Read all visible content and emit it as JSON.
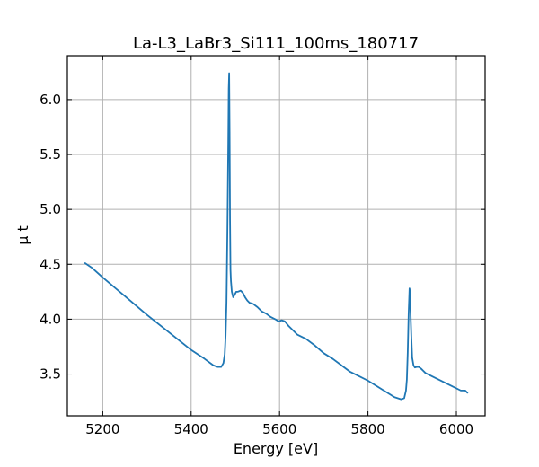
{
  "chart_data": {
    "type": "line",
    "title": "La-L3_LaBr3_Si111_100ms_180717",
    "xlabel": "Energy [eV]",
    "ylabel": "μ t",
    "xlim": [
      5120,
      6065
    ],
    "ylim": [
      3.12,
      6.4
    ],
    "xticks": [
      5200,
      5400,
      5600,
      5800,
      6000
    ],
    "xtick_labels": [
      "5200",
      "5400",
      "5600",
      "5800",
      "6000"
    ],
    "yticks": [
      3.5,
      4.0,
      4.5,
      5.0,
      5.5,
      6.0
    ],
    "ytick_labels": [
      "3.5",
      "4.0",
      "4.5",
      "5.0",
      "5.5",
      "6.0"
    ],
    "grid": true,
    "tick_direction": "in",
    "series": [
      {
        "color": "#1f77b4",
        "x": [
          5160,
          5175,
          5200,
          5250,
          5300,
          5350,
          5400,
          5430,
          5450,
          5460,
          5468,
          5473,
          5476,
          5478,
          5480,
          5482,
          5484,
          5485,
          5486,
          5487,
          5488,
          5489,
          5490,
          5492,
          5495,
          5498,
          5502,
          5506,
          5512,
          5517,
          5522,
          5527,
          5532,
          5540,
          5550,
          5560,
          5570,
          5580,
          5590,
          5598,
          5605,
          5612,
          5620,
          5640,
          5660,
          5680,
          5700,
          5720,
          5740,
          5760,
          5780,
          5800,
          5820,
          5840,
          5860,
          5875,
          5882,
          5886,
          5888,
          5890,
          5892,
          5894,
          5895,
          5896,
          5898,
          5900,
          5903,
          5906,
          5910,
          5915,
          5920,
          5925,
          5930,
          5940,
          5960,
          5980,
          6000,
          6010,
          6020,
          6025
        ],
        "y": [
          4.51,
          4.47,
          4.38,
          4.21,
          4.04,
          3.88,
          3.72,
          3.64,
          3.58,
          3.565,
          3.565,
          3.6,
          3.68,
          3.85,
          4.15,
          4.8,
          5.6,
          6.1,
          6.24,
          5.7,
          4.9,
          4.45,
          4.35,
          4.25,
          4.2,
          4.22,
          4.25,
          4.25,
          4.26,
          4.24,
          4.2,
          4.17,
          4.15,
          4.14,
          4.11,
          4.07,
          4.05,
          4.02,
          4.0,
          3.98,
          3.99,
          3.98,
          3.94,
          3.86,
          3.82,
          3.76,
          3.69,
          3.64,
          3.58,
          3.52,
          3.48,
          3.44,
          3.39,
          3.34,
          3.29,
          3.27,
          3.28,
          3.35,
          3.45,
          3.7,
          4.05,
          4.28,
          4.25,
          4.1,
          3.85,
          3.65,
          3.58,
          3.56,
          3.565,
          3.565,
          3.55,
          3.53,
          3.51,
          3.49,
          3.45,
          3.41,
          3.37,
          3.35,
          3.35,
          3.33
        ]
      }
    ]
  }
}
